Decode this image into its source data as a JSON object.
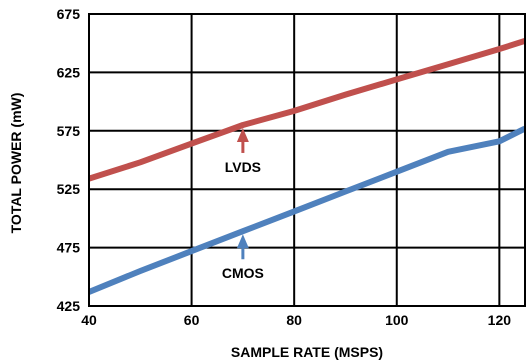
{
  "chart_data": {
    "type": "line",
    "title": "",
    "xlabel": "SAMPLE RATE (MSPS)",
    "ylabel": "TOTAL POWER (mW)",
    "xlim": [
      40,
      125
    ],
    "ylim": [
      425,
      675
    ],
    "x_ticks": [
      40,
      60,
      80,
      100,
      120
    ],
    "y_ticks": [
      425,
      475,
      525,
      575,
      625,
      675
    ],
    "grid": true,
    "x": [
      40,
      50,
      60,
      70,
      80,
      90,
      100,
      110,
      120,
      125
    ],
    "series": [
      {
        "name": "LVDS",
        "color": "#c0504d",
        "values": [
          534,
          548,
          564,
          580,
          592,
          606,
          619,
          632,
          645,
          652
        ]
      },
      {
        "name": "CMOS",
        "color": "#4f81bd",
        "values": [
          437,
          455,
          472,
          489,
          506,
          523,
          540,
          557,
          566,
          577
        ]
      }
    ],
    "annotations": [
      {
        "text": "LVDS",
        "series": "LVDS",
        "x": 70,
        "arrow_color": "#c0504d"
      },
      {
        "text": "CMOS",
        "series": "CMOS",
        "x": 70,
        "arrow_color": "#4f81bd"
      }
    ]
  }
}
